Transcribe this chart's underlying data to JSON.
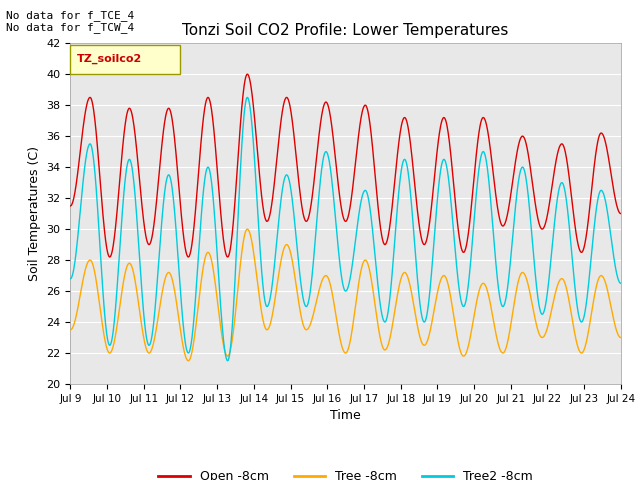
{
  "title": "Tonzi Soil CO2 Profile: Lower Temperatures",
  "xlabel": "Time",
  "ylabel": "Soil Temperatures (C)",
  "ylim": [
    20,
    42
  ],
  "yticks": [
    20,
    22,
    24,
    26,
    28,
    30,
    32,
    34,
    36,
    38,
    40,
    42
  ],
  "annotation_text": "No data for f_TCE_4\nNo data for f_TCW_4",
  "legend_label_text": "TZ_soilco2",
  "series_labels": [
    "Open -8cm",
    "Tree -8cm",
    "Tree2 -8cm"
  ],
  "series_colors": [
    "#dd0000",
    "#ffaa00",
    "#00ccdd"
  ],
  "fig_bg_color": "#ffffff",
  "plot_bg_color": "#e8e8e8",
  "grid_color": "#ffffff",
  "x_tick_labels": [
    "Jul 9",
    "Jul 10",
    "Jul 11",
    "Jul 12",
    "Jul 13",
    "Jul 14",
    "Jul 15",
    "Jul 16",
    "Jul 17",
    "Jul 18",
    "Jul 19",
    "Jul 20",
    "Jul 21",
    "Jul 22",
    "Jul 23",
    "Jul 24"
  ],
  "open_peaks": [
    31.5,
    38.5,
    28.2,
    37.8,
    29.0,
    37.8,
    28.2,
    38.5,
    28.2,
    40.0,
    30.5,
    38.5,
    30.5,
    38.2,
    30.5,
    38.0,
    29.0,
    37.2,
    29.0,
    37.2,
    28.5,
    37.2,
    30.2,
    36.0,
    30.0,
    35.5,
    28.5,
    36.2,
    31.0
  ],
  "tree_peaks": [
    23.5,
    28.0,
    22.0,
    27.8,
    22.0,
    27.2,
    21.5,
    28.5,
    21.8,
    30.0,
    23.5,
    29.0,
    23.5,
    27.0,
    22.0,
    28.0,
    22.2,
    27.2,
    22.5,
    27.0,
    21.8,
    26.5,
    22.0,
    27.2,
    23.0,
    26.8,
    22.0,
    27.0,
    23.0
  ],
  "tree2_peaks": [
    26.8,
    35.5,
    22.5,
    34.5,
    22.5,
    33.5,
    22.0,
    34.0,
    21.5,
    38.5,
    25.0,
    33.5,
    25.0,
    35.0,
    26.0,
    32.5,
    24.0,
    34.5,
    24.0,
    34.5,
    25.0,
    35.0,
    25.0,
    34.0,
    24.5,
    33.0,
    24.0,
    32.5,
    26.5
  ]
}
